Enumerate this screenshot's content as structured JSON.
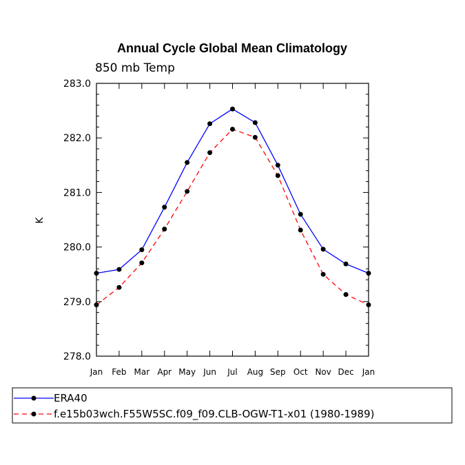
{
  "chart_data": {
    "type": "line",
    "title": "Annual Cycle Global Mean Climatology",
    "subtitle": "850 mb Temp",
    "xlabel": "",
    "ylabel": "K",
    "categories": [
      "Jan",
      "Feb",
      "Mar",
      "Apr",
      "May",
      "Jun",
      "Jul",
      "Aug",
      "Sep",
      "Oct",
      "Nov",
      "Dec",
      "Jan"
    ],
    "ylim": [
      278.0,
      283.0
    ],
    "yticks": [
      "278.0",
      "279.0",
      "280.0",
      "281.0",
      "282.0",
      "283.0"
    ],
    "legend_position": "bottom",
    "series": [
      {
        "name": "ERA40",
        "color": "#0000ff",
        "dash": "solid",
        "values": [
          279.52,
          279.59,
          279.95,
          280.73,
          281.55,
          282.26,
          282.53,
          282.28,
          281.5,
          280.6,
          279.96,
          279.69,
          279.52
        ]
      },
      {
        "name": "f.e15b03wch.F55W5SC.f09_f09.CLB-OGW-T1-x01 (1980-1989)",
        "color": "#ff0000",
        "dash": "dashed",
        "values": [
          278.94,
          279.26,
          279.71,
          280.33,
          281.02,
          281.73,
          282.16,
          282.01,
          281.31,
          280.31,
          279.5,
          279.13,
          278.94
        ]
      }
    ]
  }
}
